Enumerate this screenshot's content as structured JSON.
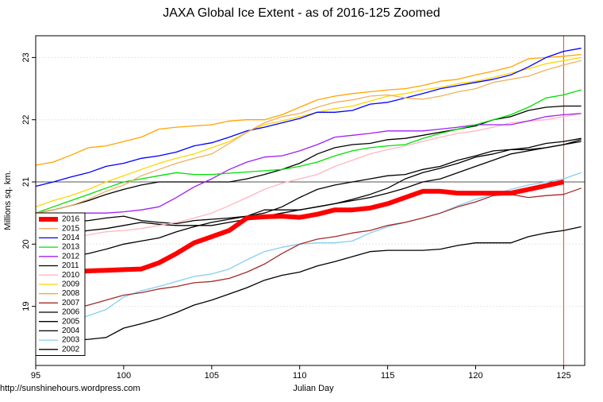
{
  "chart_data": {
    "type": "line",
    "title": "JAXA Global Ice Extent - as of 2016-125 Zoomed",
    "x_label": "Julian Day",
    "y_label": "Millions sq. km.",
    "footer": "http://sunshinehours.wordpress.com",
    "x": [
      95,
      96,
      97,
      98,
      99,
      100,
      101,
      102,
      103,
      104,
      105,
      106,
      107,
      108,
      109,
      110,
      111,
      112,
      113,
      114,
      115,
      116,
      117,
      118,
      119,
      120,
      121,
      122,
      123,
      124,
      125,
      126
    ],
    "xlim": [
      95,
      126.2
    ],
    "ylim": [
      18.05,
      23.35
    ],
    "xticks": [
      95,
      100,
      105,
      110,
      115,
      120,
      125
    ],
    "yticks": [
      19,
      20,
      21,
      22,
      23
    ],
    "grid": true,
    "hline": 21,
    "vline": 125,
    "legend": "bottom-left",
    "series": [
      {
        "name": "2016",
        "color": "#ff0000",
        "values": [
          19.46,
          19.5,
          19.55,
          19.57,
          19.58,
          19.59,
          19.6,
          19.7,
          19.85,
          20.02,
          20.12,
          20.22,
          20.42,
          20.44,
          20.45,
          20.43,
          20.48,
          20.55,
          20.55,
          20.58,
          20.65,
          20.75,
          20.85,
          20.85,
          20.82,
          20.82,
          20.82,
          20.82,
          20.88,
          20.94,
          21.0,
          null
        ]
      },
      {
        "name": "2015",
        "color": "#f0b060",
        "values": [
          20.5,
          20.55,
          20.62,
          20.72,
          20.85,
          20.95,
          21.1,
          21.2,
          21.3,
          21.38,
          21.45,
          21.62,
          21.8,
          21.95,
          22.05,
          22.1,
          22.2,
          22.28,
          22.32,
          22.38,
          22.4,
          22.35,
          22.33,
          22.38,
          22.45,
          22.5,
          22.6,
          22.65,
          22.7,
          22.8,
          22.88,
          22.95
        ]
      },
      {
        "name": "2014",
        "color": "#0000ff",
        "values": [
          20.93,
          21.0,
          21.08,
          21.15,
          21.25,
          21.3,
          21.38,
          21.42,
          21.48,
          21.58,
          21.63,
          21.72,
          21.82,
          21.88,
          21.95,
          22.02,
          22.12,
          22.12,
          22.15,
          22.25,
          22.28,
          22.35,
          22.42,
          22.5,
          22.55,
          22.6,
          22.65,
          22.72,
          22.85,
          23.0,
          23.1,
          23.15
        ]
      },
      {
        "name": "2013",
        "color": "#00e000",
        "values": [
          20.5,
          20.6,
          20.7,
          20.8,
          20.9,
          21.0,
          21.05,
          21.1,
          21.15,
          21.12,
          21.12,
          21.14,
          21.16,
          21.18,
          21.2,
          21.25,
          21.32,
          21.42,
          21.5,
          21.55,
          21.58,
          21.6,
          21.7,
          21.78,
          21.85,
          21.92,
          22.0,
          22.08,
          22.2,
          22.35,
          22.4,
          22.48
        ]
      },
      {
        "name": "2012",
        "color": "#a020f0",
        "values": [
          20.5,
          20.5,
          20.5,
          20.5,
          20.5,
          20.52,
          20.55,
          20.6,
          20.75,
          20.92,
          21.05,
          21.2,
          21.32,
          21.4,
          21.42,
          21.5,
          21.6,
          21.72,
          21.75,
          21.78,
          21.82,
          21.82,
          21.82,
          21.85,
          21.88,
          21.92,
          21.92,
          21.92,
          21.98,
          22.05,
          22.08,
          22.1
        ]
      },
      {
        "name": "2011",
        "color": "#000000",
        "values": [
          20.5,
          20.55,
          20.62,
          20.7,
          20.8,
          20.88,
          20.95,
          21.0,
          21.0,
          21.0,
          21.0,
          21.0,
          21.05,
          21.12,
          21.2,
          21.3,
          21.45,
          21.55,
          21.6,
          21.62,
          21.68,
          21.7,
          21.75,
          21.8,
          21.85,
          21.9,
          22.0,
          22.05,
          22.15,
          22.2,
          22.22,
          22.22
        ]
      },
      {
        "name": "2010",
        "color": "#ffb6c1",
        "values": [
          19.98,
          20.02,
          20.1,
          20.15,
          20.2,
          20.22,
          20.25,
          20.3,
          20.35,
          20.42,
          20.5,
          20.62,
          20.75,
          20.88,
          20.98,
          21.05,
          21.12,
          21.25,
          21.35,
          21.45,
          21.52,
          21.58,
          21.65,
          21.72,
          21.78,
          21.82,
          21.88,
          21.95,
          21.98,
          22.0,
          22.05,
          22.1
        ]
      },
      {
        "name": "2009",
        "color": "#ffd700",
        "values": [
          20.6,
          20.7,
          20.78,
          20.88,
          21.0,
          21.1,
          21.2,
          21.3,
          21.38,
          21.45,
          21.55,
          21.65,
          21.8,
          21.92,
          21.98,
          22.05,
          22.12,
          22.18,
          22.22,
          22.3,
          22.38,
          22.42,
          22.48,
          22.52,
          22.58,
          22.62,
          22.68,
          22.75,
          22.82,
          22.9,
          22.95,
          23.0
        ]
      },
      {
        "name": "2008",
        "color": "#ffa500",
        "values": [
          21.27,
          21.32,
          21.43,
          21.55,
          21.58,
          21.65,
          21.72,
          21.85,
          21.88,
          21.9,
          21.92,
          21.98,
          22.0,
          22.0,
          22.08,
          22.2,
          22.32,
          22.38,
          22.42,
          22.45,
          22.48,
          22.5,
          22.55,
          22.62,
          22.65,
          22.72,
          22.78,
          22.85,
          22.98,
          23.0,
          23.02,
          23.05
        ]
      },
      {
        "name": "2007",
        "color": "#a52a2a",
        "values": [
          18.8,
          18.88,
          18.95,
          19.02,
          19.1,
          19.18,
          19.22,
          19.28,
          19.32,
          19.38,
          19.4,
          19.45,
          19.55,
          19.68,
          19.85,
          20.0,
          20.08,
          20.12,
          20.18,
          20.22,
          20.3,
          20.35,
          20.42,
          20.5,
          20.6,
          20.68,
          20.78,
          20.8,
          20.75,
          20.78,
          20.8,
          20.9
        ]
      },
      {
        "name": "2006",
        "color": "#000000",
        "values": [
          20.3,
          20.32,
          20.35,
          20.38,
          20.42,
          20.45,
          20.38,
          20.35,
          20.33,
          20.38,
          20.4,
          20.42,
          20.45,
          20.5,
          20.6,
          20.75,
          20.88,
          20.95,
          21.0,
          21.05,
          21.1,
          21.12,
          21.2,
          21.25,
          21.35,
          21.42,
          21.5,
          21.52,
          21.55,
          21.62,
          21.65,
          21.7
        ]
      },
      {
        "name": "2005",
        "color": "#000000",
        "values": [
          20.05,
          20.1,
          20.18,
          20.22,
          20.25,
          20.3,
          20.35,
          20.32,
          20.3,
          20.3,
          20.3,
          20.35,
          20.4,
          20.45,
          20.5,
          20.55,
          20.6,
          20.65,
          20.72,
          20.8,
          20.9,
          21.05,
          21.15,
          21.22,
          21.3,
          21.4,
          21.45,
          21.52,
          21.52,
          21.55,
          21.6,
          21.68
        ]
      },
      {
        "name": "2004",
        "color": "#000000",
        "values": [
          19.65,
          19.72,
          19.8,
          19.85,
          19.92,
          20.0,
          20.05,
          20.1,
          20.2,
          20.28,
          20.35,
          20.4,
          20.45,
          20.55,
          20.55,
          20.55,
          20.6,
          20.65,
          20.7,
          20.75,
          20.82,
          20.9,
          21.0,
          21.05,
          21.15,
          21.25,
          21.35,
          21.45,
          21.5,
          21.55,
          21.6,
          21.65
        ]
      },
      {
        "name": "2003",
        "color": "#87ceeb",
        "values": [
          18.42,
          18.6,
          18.75,
          18.85,
          18.95,
          19.15,
          19.25,
          19.32,
          19.4,
          19.48,
          19.52,
          19.6,
          19.75,
          19.88,
          19.95,
          20.0,
          20.02,
          20.02,
          20.05,
          20.18,
          20.28,
          20.35,
          20.42,
          20.5,
          20.62,
          20.72,
          20.8,
          20.88,
          20.95,
          21.0,
          21.05,
          21.15
        ]
      },
      {
        "name": "2002",
        "color": "#000000",
        "values": [
          18.45,
          18.45,
          18.45,
          18.47,
          18.5,
          18.65,
          18.72,
          18.8,
          18.9,
          19.02,
          19.1,
          19.2,
          19.3,
          19.42,
          19.5,
          19.55,
          19.65,
          19.72,
          19.8,
          19.88,
          19.9,
          19.9,
          19.9,
          19.92,
          19.98,
          20.02,
          20.02,
          20.02,
          20.12,
          20.18,
          20.22,
          20.28
        ]
      }
    ]
  }
}
